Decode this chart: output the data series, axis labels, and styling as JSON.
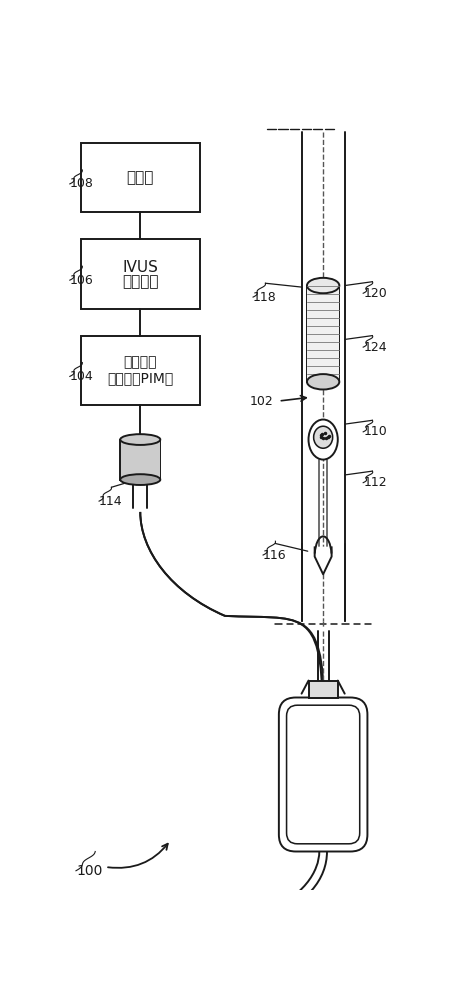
{
  "bg_color": "#ffffff",
  "lc": "#1a1a1a",
  "lw": 1.4,
  "figsize": [
    4.63,
    10.0
  ],
  "dpi": 100,
  "labels": {
    "monitor": "监视器",
    "ivus_line1": "IVUS",
    "ivus_line2": "处理系统",
    "pim_line1": "患者接口",
    "pim_line2": "监测器（PIM）"
  },
  "font_size_box": 11,
  "font_size_ref": 9
}
